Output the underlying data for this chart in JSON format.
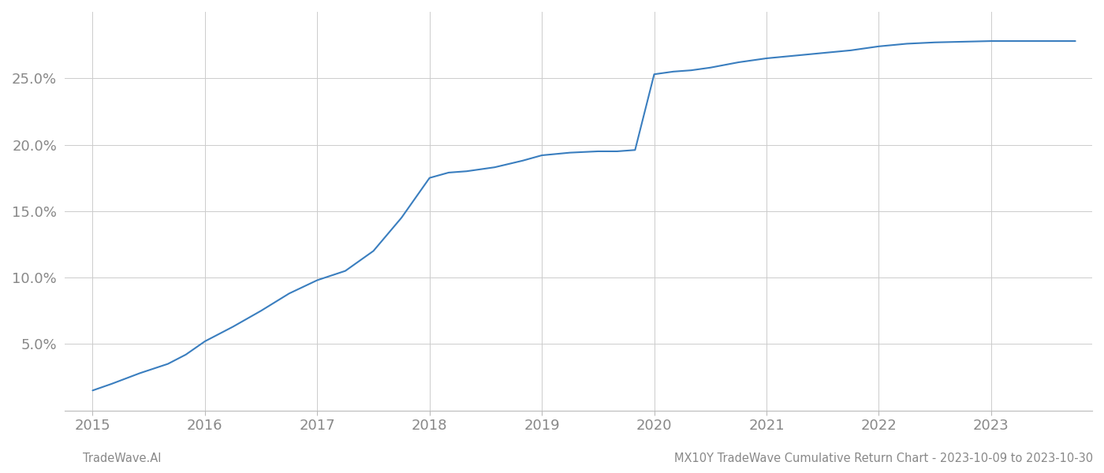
{
  "title": "",
  "footer_left": "TradeWave.AI",
  "footer_right": "MX10Y TradeWave Cumulative Return Chart - 2023-10-09 to 2023-10-30",
  "line_color": "#3a7ebf",
  "background_color": "#ffffff",
  "grid_color": "#cccccc",
  "text_color": "#888888",
  "x_values": [
    2015.0,
    2015.17,
    2015.42,
    2015.67,
    2015.83,
    2016.0,
    2016.25,
    2016.5,
    2016.75,
    2017.0,
    2017.25,
    2017.5,
    2017.75,
    2018.0,
    2018.17,
    2018.33,
    2018.58,
    2018.83,
    2019.0,
    2019.25,
    2019.5,
    2019.67,
    2019.83,
    2020.0,
    2020.17,
    2020.33,
    2020.5,
    2020.75,
    2021.0,
    2021.25,
    2021.5,
    2021.75,
    2022.0,
    2022.25,
    2022.5,
    2022.75,
    2023.0,
    2023.5,
    2023.75
  ],
  "y_values": [
    1.5,
    2.0,
    2.8,
    3.5,
    4.2,
    5.2,
    6.3,
    7.5,
    8.8,
    9.8,
    10.5,
    12.0,
    14.5,
    17.5,
    17.9,
    18.0,
    18.3,
    18.8,
    19.2,
    19.4,
    19.5,
    19.5,
    19.6,
    25.3,
    25.5,
    25.6,
    25.8,
    26.2,
    26.5,
    26.7,
    26.9,
    27.1,
    27.4,
    27.6,
    27.7,
    27.75,
    27.8,
    27.8,
    27.8
  ],
  "xlim": [
    2014.75,
    2023.9
  ],
  "ylim": [
    0,
    30
  ],
  "yticks": [
    5.0,
    10.0,
    15.0,
    20.0,
    25.0
  ],
  "xticks": [
    2015,
    2016,
    2017,
    2018,
    2019,
    2020,
    2021,
    2022,
    2023
  ],
  "line_width": 1.5,
  "figsize": [
    14,
    6
  ],
  "dpi": 100
}
